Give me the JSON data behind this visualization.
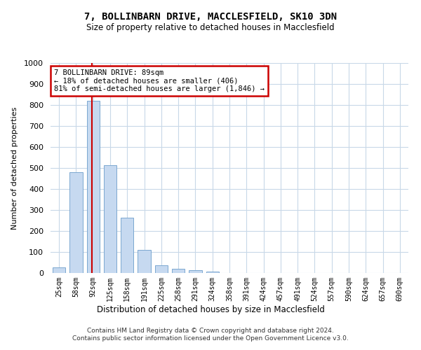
{
  "title": "7, BOLLINBARN DRIVE, MACCLESFIELD, SK10 3DN",
  "subtitle": "Size of property relative to detached houses in Macclesfield",
  "xlabel": "Distribution of detached houses by size in Macclesfield",
  "ylabel": "Number of detached properties",
  "footnote": "Contains HM Land Registry data © Crown copyright and database right 2024.\nContains public sector information licensed under the Open Government Licence v3.0.",
  "bar_labels": [
    "25sqm",
    "58sqm",
    "92sqm",
    "125sqm",
    "158sqm",
    "191sqm",
    "225sqm",
    "258sqm",
    "291sqm",
    "324sqm",
    "358sqm",
    "391sqm",
    "424sqm",
    "457sqm",
    "491sqm",
    "524sqm",
    "557sqm",
    "590sqm",
    "624sqm",
    "657sqm",
    "690sqm"
  ],
  "bar_values": [
    27,
    480,
    820,
    515,
    265,
    110,
    38,
    20,
    13,
    8,
    0,
    0,
    0,
    0,
    0,
    0,
    0,
    0,
    0,
    0,
    0
  ],
  "bar_color": "#c6d9f0",
  "bar_edge_color": "#7ba7d0",
  "ylim": [
    0,
    1000
  ],
  "yticks": [
    0,
    100,
    200,
    300,
    400,
    500,
    600,
    700,
    800,
    900,
    1000
  ],
  "vline_x": 1.91,
  "vline_color": "#cc0000",
  "annotation_text": "7 BOLLINBARN DRIVE: 89sqm\n← 18% of detached houses are smaller (406)\n81% of semi-detached houses are larger (1,846) →",
  "annotation_box_color": "#cc0000",
  "background_color": "#ffffff",
  "grid_color": "#c8d8e8"
}
